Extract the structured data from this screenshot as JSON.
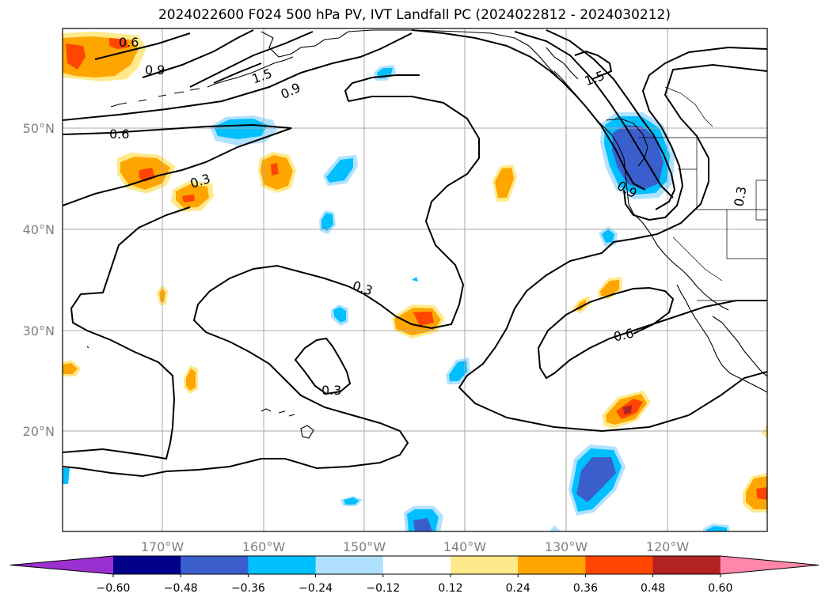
{
  "title": "2024022600 F024 500 hPa PV, IVT Landfall PC (2024022812 - 2024030212)",
  "lat_labels": [
    "50°N",
    "40°N",
    "30°N",
    "20°N"
  ],
  "lon_labels": [
    "170°W",
    "160°W",
    "150°W",
    "140°W",
    "130°W",
    "120°W"
  ],
  "colorbar": {
    "tick_labels": [
      "−0.60",
      "−0.48",
      "−0.36",
      "−0.24",
      "−0.12",
      "0.12",
      "0.24",
      "0.36",
      "0.48",
      "0.60"
    ],
    "colors": [
      "#9b30d0",
      "#00008b",
      "#3a5fcd",
      "#00bfff",
      "#b0e2ff",
      "#ffffff",
      "#ffe98a",
      "#ffa500",
      "#ff4500",
      "#b22222",
      "#ff88aa"
    ]
  },
  "contour_labels": [
    "0.6",
    "0.9",
    "1.5",
    "0.9",
    "0.6",
    "0.3",
    "0.3",
    "0.3",
    "0.6",
    "1.5",
    "0.9",
    "0.3"
  ]
}
